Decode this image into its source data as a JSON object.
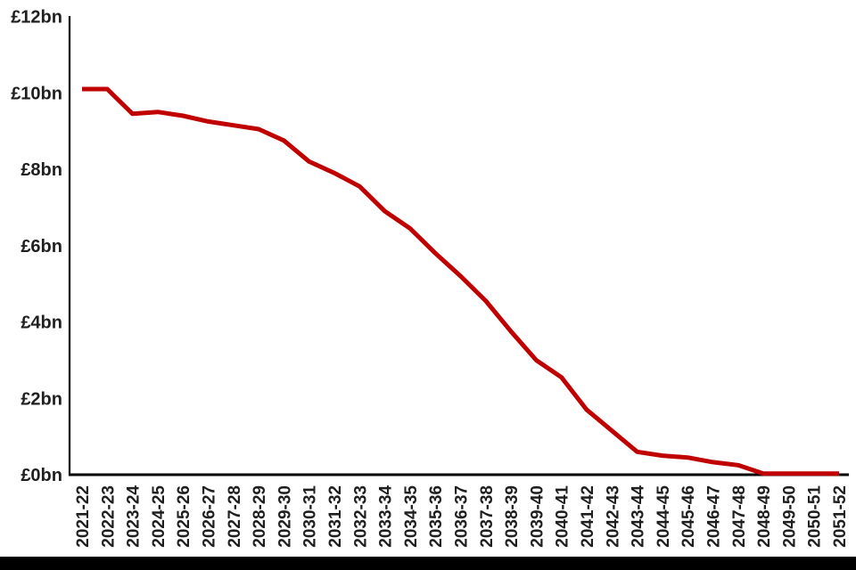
{
  "page": {
    "background_color": "#ffffff",
    "bottom_bar_color": "#000000"
  },
  "chart_data": {
    "type": "line",
    "title": "",
    "xlabel": "",
    "ylabel": "",
    "currency_prefix": "£",
    "unit_suffix": "bn",
    "grid": false,
    "legend_position": "none",
    "x_label_rotation_degrees": -90,
    "ylim": [
      0,
      12
    ],
    "y_ticks": [
      "£12bn",
      "£10bn",
      "£8bn",
      "£6bn",
      "£4bn",
      "£2bn",
      "£0bn"
    ],
    "y_tick_values": [
      12,
      10,
      8,
      6,
      4,
      2,
      0
    ],
    "categories": [
      "2021-22",
      "2022-23",
      "2023-24",
      "2024-25",
      "2025-26",
      "2026-27",
      "2027-28",
      "2028-29",
      "2029-30",
      "2030-31",
      "2031-32",
      "2032-33",
      "2033-34",
      "2034-35",
      "2035-36",
      "2036-37",
      "2037-38",
      "2038-39",
      "2039-40",
      "2040-41",
      "2041-42",
      "2042-43",
      "2043-44",
      "2044-45",
      "2045-46",
      "2046-47",
      "2047-48",
      "2048-49",
      "2049-50",
      "2050-51",
      "2051-52"
    ],
    "series": [
      {
        "name": "value-gbp-bn",
        "color": "#c00000",
        "values": [
          10.1,
          10.1,
          9.45,
          9.5,
          9.4,
          9.25,
          9.15,
          9.05,
          8.75,
          8.2,
          7.9,
          7.55,
          6.9,
          6.45,
          5.8,
          5.2,
          4.55,
          3.75,
          3.0,
          2.55,
          1.7,
          1.15,
          0.6,
          0.5,
          0.45,
          0.33,
          0.25,
          0.03,
          0.03,
          0.03,
          0.03
        ]
      }
    ],
    "axis_color": "#000000",
    "label_color": "#1f1f1f"
  }
}
